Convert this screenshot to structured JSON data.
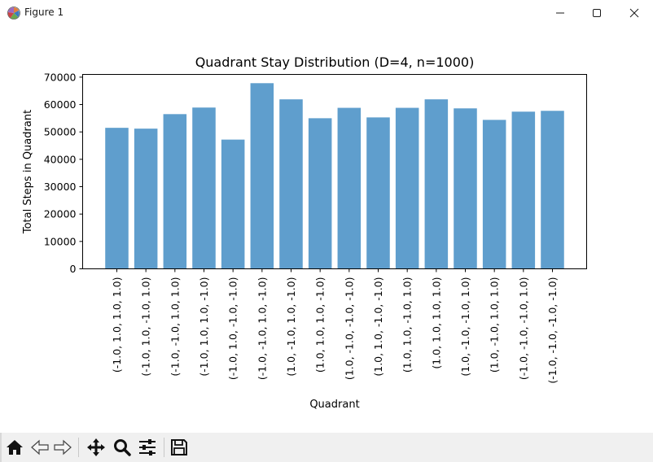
{
  "window": {
    "title": "Figure 1"
  },
  "toolbar": {
    "buttons": [
      {
        "name": "home-button",
        "icon": "home-icon"
      },
      {
        "name": "back-button",
        "icon": "arrow-left-icon"
      },
      {
        "name": "forward-button",
        "icon": "arrow-right-icon"
      },
      {
        "name": "pan-button",
        "icon": "move-icon"
      },
      {
        "name": "zoom-button",
        "icon": "magnifier-icon"
      },
      {
        "name": "configure-subplots-button",
        "icon": "sliders-icon"
      },
      {
        "name": "save-button",
        "icon": "floppy-disk-icon"
      }
    ]
  },
  "chart_data": {
    "type": "bar",
    "title": "Quadrant Stay Distribution (D=4, n=1000)",
    "xlabel": "Quadrant",
    "ylabel": "Total Steps in Quadrant",
    "ylim": [
      0,
      71000
    ],
    "yticks": [
      0,
      10000,
      20000,
      30000,
      40000,
      50000,
      60000,
      70000
    ],
    "bar_color": "#5f9ecd",
    "grid": false,
    "categories": [
      "(-1.0, 1.0, 1.0, 1.0)",
      "(-1.0, 1.0, -1.0, 1.0)",
      "(-1.0, -1.0, 1.0, 1.0)",
      "(-1.0, 1.0, 1.0, -1.0)",
      "(-1.0, 1.0, -1.0, -1.0)",
      "(-1.0, -1.0, 1.0, -1.0)",
      "(1.0, -1.0, 1.0, -1.0)",
      "(1.0, 1.0, 1.0, -1.0)",
      "(1.0, -1.0, -1.0, -1.0)",
      "(1.0, 1.0, -1.0, -1.0)",
      "(1.0, 1.0, -1.0, 1.0)",
      "(1.0, 1.0, 1.0, 1.0)",
      "(1.0, -1.0, -1.0, 1.0)",
      "(1.0, -1.0, 1.0, 1.0)",
      "(-1.0, -1.0, -1.0, 1.0)",
      "(-1.0, -1.0, -1.0, -1.0)"
    ],
    "values": [
      51500,
      51200,
      56500,
      58900,
      47200,
      67800,
      61900,
      55000,
      58800,
      55300,
      58800,
      61900,
      58600,
      54400,
      57400,
      57700
    ]
  }
}
